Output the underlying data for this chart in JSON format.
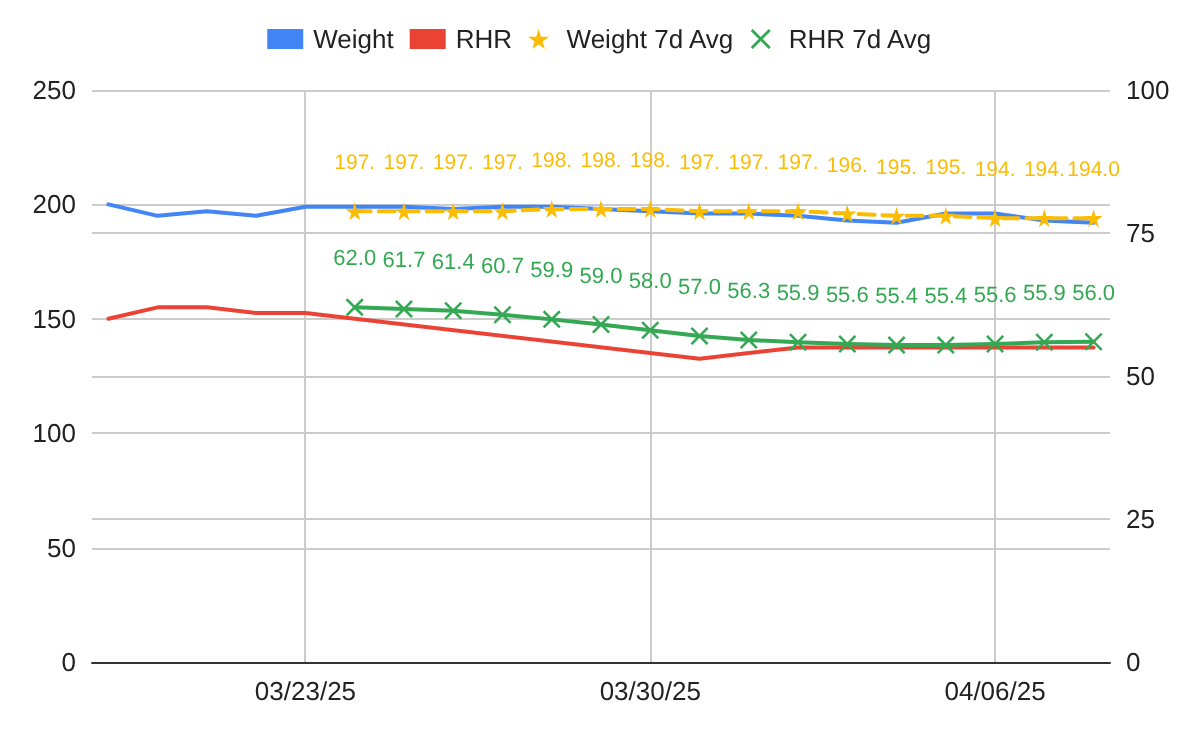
{
  "chart_data": {
    "type": "line",
    "x": [
      "2025-03-19",
      "2025-03-20",
      "2025-03-21",
      "2025-03-22",
      "2025-03-23",
      "2025-03-24",
      "2025-03-25",
      "2025-03-26",
      "2025-03-27",
      "2025-03-28",
      "2025-03-29",
      "2025-03-30",
      "2025-03-31",
      "2025-04-01",
      "2025-04-02",
      "2025-04-03",
      "2025-04-04",
      "2025-04-05",
      "2025-04-06",
      "2025-04-07",
      "2025-04-08"
    ],
    "series": [
      {
        "name": "Weight",
        "color": "#4285f4",
        "marker": "none",
        "values": [
          200,
          195,
          197,
          195,
          199,
          199,
          199,
          198,
          199,
          199,
          198,
          197,
          196,
          196,
          195,
          193,
          192,
          196,
          196,
          193,
          192
        ]
      },
      {
        "name": "RHR",
        "color": "#ea4335",
        "marker": "none",
        "axis": "y2",
        "x": [
          "2025-03-19",
          "2025-03-20",
          "2025-03-21",
          "2025-03-22",
          "2025-03-23",
          "2025-03-31",
          "2025-04-02",
          "2025-04-08"
        ],
        "values": [
          60.0,
          62.0,
          62.0,
          61.0,
          61.0,
          53.0,
          55.0,
          55.0
        ]
      },
      {
        "name": "Weight 7d Avg",
        "color": "#fbbc04",
        "marker": "star",
        "line_style": "dashed",
        "x": [
          "2025-03-24",
          "2025-03-25",
          "2025-03-26",
          "2025-03-27",
          "2025-03-28",
          "2025-03-29",
          "2025-03-30",
          "2025-03-31",
          "2025-04-01",
          "2025-04-02",
          "2025-04-03",
          "2025-04-04",
          "2025-04-05",
          "2025-04-06",
          "2025-04-07",
          "2025-04-08"
        ],
        "values": [
          197,
          197,
          197,
          197,
          198,
          198,
          198,
          197,
          197,
          197,
          196,
          195,
          195,
          194,
          194,
          194
        ],
        "value_labels": [
          "197.",
          "197.",
          "197.",
          "197.",
          "198.",
          "198.",
          "198.",
          "197.",
          "197.",
          "197.",
          "196.",
          "195.",
          "195.",
          "194.",
          "194.",
          "194.0"
        ]
      },
      {
        "name": "RHR 7d Avg",
        "color": "#34a853",
        "marker": "cross",
        "axis": "y2",
        "x": [
          "2025-03-24",
          "2025-03-25",
          "2025-03-26",
          "2025-03-27",
          "2025-03-28",
          "2025-03-29",
          "2025-03-30",
          "2025-03-31",
          "2025-04-01",
          "2025-04-02",
          "2025-04-03",
          "2025-04-04",
          "2025-04-05",
          "2025-04-06",
          "2025-04-07",
          "2025-04-08"
        ],
        "values": [
          62.0,
          61.7,
          61.4,
          60.7,
          59.9,
          59.0,
          58.0,
          57.0,
          56.3,
          55.9,
          55.6,
          55.4,
          55.4,
          55.6,
          55.9,
          56.0
        ],
        "value_labels": [
          "62.0",
          "61.7",
          "61.4",
          "60.7",
          "59.9",
          "59.0",
          "58.0",
          "57.0",
          "56.3",
          "55.9",
          "55.6",
          "55.4",
          "55.4",
          "55.6",
          "55.9",
          "56.0"
        ]
      }
    ],
    "xlim": [
      "2025-03-18T16:00",
      "2025-04-08T08:00"
    ],
    "xticks": [
      {
        "value": "2025-03-23",
        "label": "03/23/25"
      },
      {
        "value": "2025-03-30",
        "label": "03/30/25"
      },
      {
        "value": "2025-04-06",
        "label": "04/06/25"
      }
    ],
    "ylim": [
      0,
      250
    ],
    "yticks": [
      0,
      50,
      100,
      150,
      200,
      250
    ],
    "y2lim": [
      0,
      100
    ],
    "y2ticks": [
      0,
      25,
      50,
      75,
      100
    ],
    "grid": true,
    "legend": "top"
  }
}
